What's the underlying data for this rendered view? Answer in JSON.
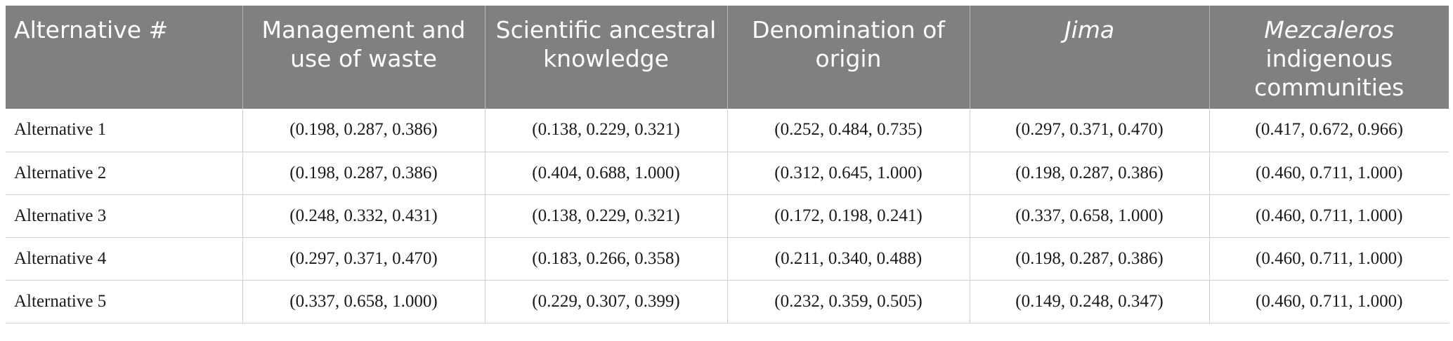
{
  "table": {
    "headers": [
      {
        "text": "Alternative #",
        "italic_part": "",
        "rest": ""
      },
      {
        "text": "Management and use of waste",
        "italic_part": "",
        "rest": ""
      },
      {
        "text": "Scientific ancestral knowledge",
        "italic_part": "",
        "rest": ""
      },
      {
        "text": "Denomination of origin",
        "italic_part": "",
        "rest": ""
      },
      {
        "text": "",
        "italic_part": "Jima",
        "rest": ""
      },
      {
        "text": "",
        "italic_part": "Mezcaleros",
        "rest": "indigenous communities"
      }
    ],
    "rows": [
      [
        "Alternative 1",
        "(0.198, 0.287, 0.386)",
        "(0.138, 0.229, 0.321)",
        "(0.252, 0.484, 0.735)",
        "(0.297, 0.371, 0.470)",
        "(0.417, 0.672, 0.966)"
      ],
      [
        "Alternative 2",
        "(0.198, 0.287, 0.386)",
        "(0.404, 0.688, 1.000)",
        "(0.312, 0.645, 1.000)",
        "(0.198, 0.287, 0.386)",
        "(0.460, 0.711, 1.000)"
      ],
      [
        "Alternative 3",
        "(0.248, 0.332, 0.431)",
        "(0.138, 0.229, 0.321)",
        "(0.172, 0.198, 0.241)",
        "(0.337, 0.658, 1.000)",
        "(0.460, 0.711, 1.000)"
      ],
      [
        "Alternative 4",
        "(0.297, 0.371, 0.470)",
        "(0.183, 0.266, 0.358)",
        "(0.211, 0.340, 0.488)",
        "(0.198, 0.287, 0.386)",
        "(0.460, 0.711, 1.000)"
      ],
      [
        "Alternative 5",
        "(0.337, 0.658, 1.000)",
        "(0.229, 0.307, 0.399)",
        "(0.232, 0.359, 0.505)",
        "(0.149, 0.248, 0.347)",
        "(0.460, 0.711, 1.000)"
      ]
    ]
  },
  "colors": {
    "header_bg": "#808080",
    "header_text": "#ffffff",
    "grid_line": "#d0d0d0"
  }
}
